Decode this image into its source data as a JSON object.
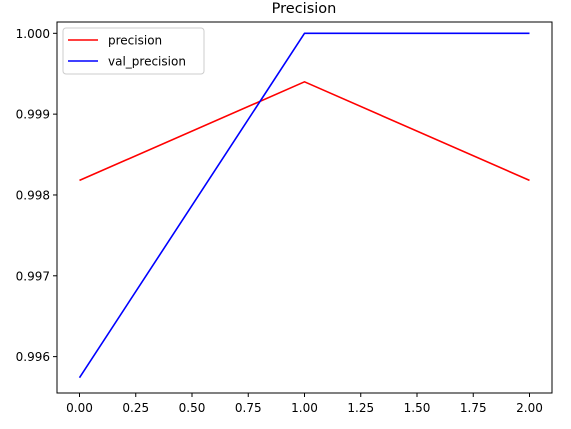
{
  "chart_data": {
    "type": "line",
    "title": "Precision",
    "xlabel": "",
    "ylabel": "",
    "x": [
      0,
      1,
      2
    ],
    "xlim": [
      -0.1,
      2.1
    ],
    "ylim": [
      0.99555,
      1.00014
    ],
    "xticks": [
      0.0,
      0.25,
      0.5,
      0.75,
      1.0,
      1.25,
      1.5,
      1.75,
      2.0
    ],
    "xtick_labels": [
      "0.00",
      "0.25",
      "0.50",
      "0.75",
      "1.00",
      "1.25",
      "1.50",
      "1.75",
      "2.00"
    ],
    "yticks": [
      0.996,
      0.997,
      0.998,
      0.999,
      1.0
    ],
    "ytick_labels": [
      "0.996",
      "0.997",
      "0.998",
      "0.999",
      "1.000"
    ],
    "grid": false,
    "legend_position": "top-left",
    "series": [
      {
        "name": "precision",
        "color": "#ff0000",
        "values": [
          0.99818,
          0.9994,
          0.99818
        ]
      },
      {
        "name": "val_precision",
        "color": "#0000ff",
        "values": [
          0.99574,
          1.0,
          1.0
        ]
      }
    ]
  }
}
